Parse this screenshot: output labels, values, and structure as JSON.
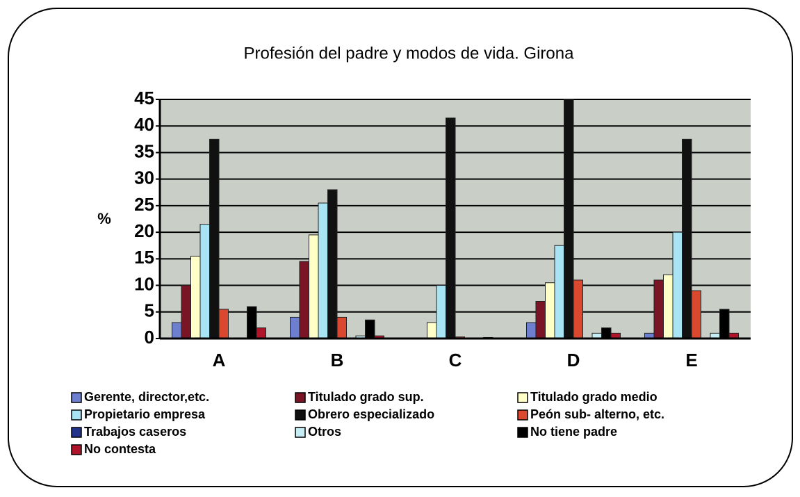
{
  "chart_data": {
    "type": "bar",
    "title": "Profesión del padre y modos de vida. Girona",
    "y_label": "%",
    "categories": [
      "A",
      "B",
      "C",
      "D",
      "E"
    ],
    "ylim": [
      0,
      45
    ],
    "yticks": [
      0,
      5,
      10,
      15,
      20,
      25,
      30,
      35,
      40,
      45
    ],
    "grid": true,
    "series": [
      {
        "name": "Gerente, director,etc.",
        "color": "#6f7fd0",
        "values": [
          3,
          4,
          0,
          3,
          1
        ]
      },
      {
        "name": "Titulado grado sup.",
        "color": "#7a1526",
        "values": [
          10,
          14.5,
          0,
          7,
          11
        ]
      },
      {
        "name": "Titulado grado medio",
        "color": "#ffffc8",
        "values": [
          15.5,
          19.5,
          3,
          10.5,
          12
        ]
      },
      {
        "name": "Propietario empresa",
        "color": "#a8e4f4",
        "values": [
          21.5,
          25.5,
          10,
          17.5,
          20
        ]
      },
      {
        "name": "Obrero especializado",
        "color": "#111111",
        "values": [
          37.5,
          28,
          41.5,
          45,
          37.5
        ]
      },
      {
        "name": "Peón sub- alterno, etc.",
        "color": "#d9482f",
        "values": [
          5.5,
          4,
          0.3,
          11,
          9
        ]
      },
      {
        "name": "Trabajos caseros",
        "color": "#22338a",
        "values": [
          0,
          0,
          0,
          0,
          0
        ]
      },
      {
        "name": "Otros",
        "color": "#c6ecf4",
        "values": [
          0,
          0.5,
          0,
          1,
          1
        ]
      },
      {
        "name": "No tiene padre",
        "color": "#000000",
        "values": [
          6,
          3.5,
          0.2,
          2,
          5.5
        ]
      },
      {
        "name": "No contesta",
        "color": "#b0142a",
        "values": [
          2,
          0.5,
          0,
          1,
          1
        ]
      }
    ]
  }
}
